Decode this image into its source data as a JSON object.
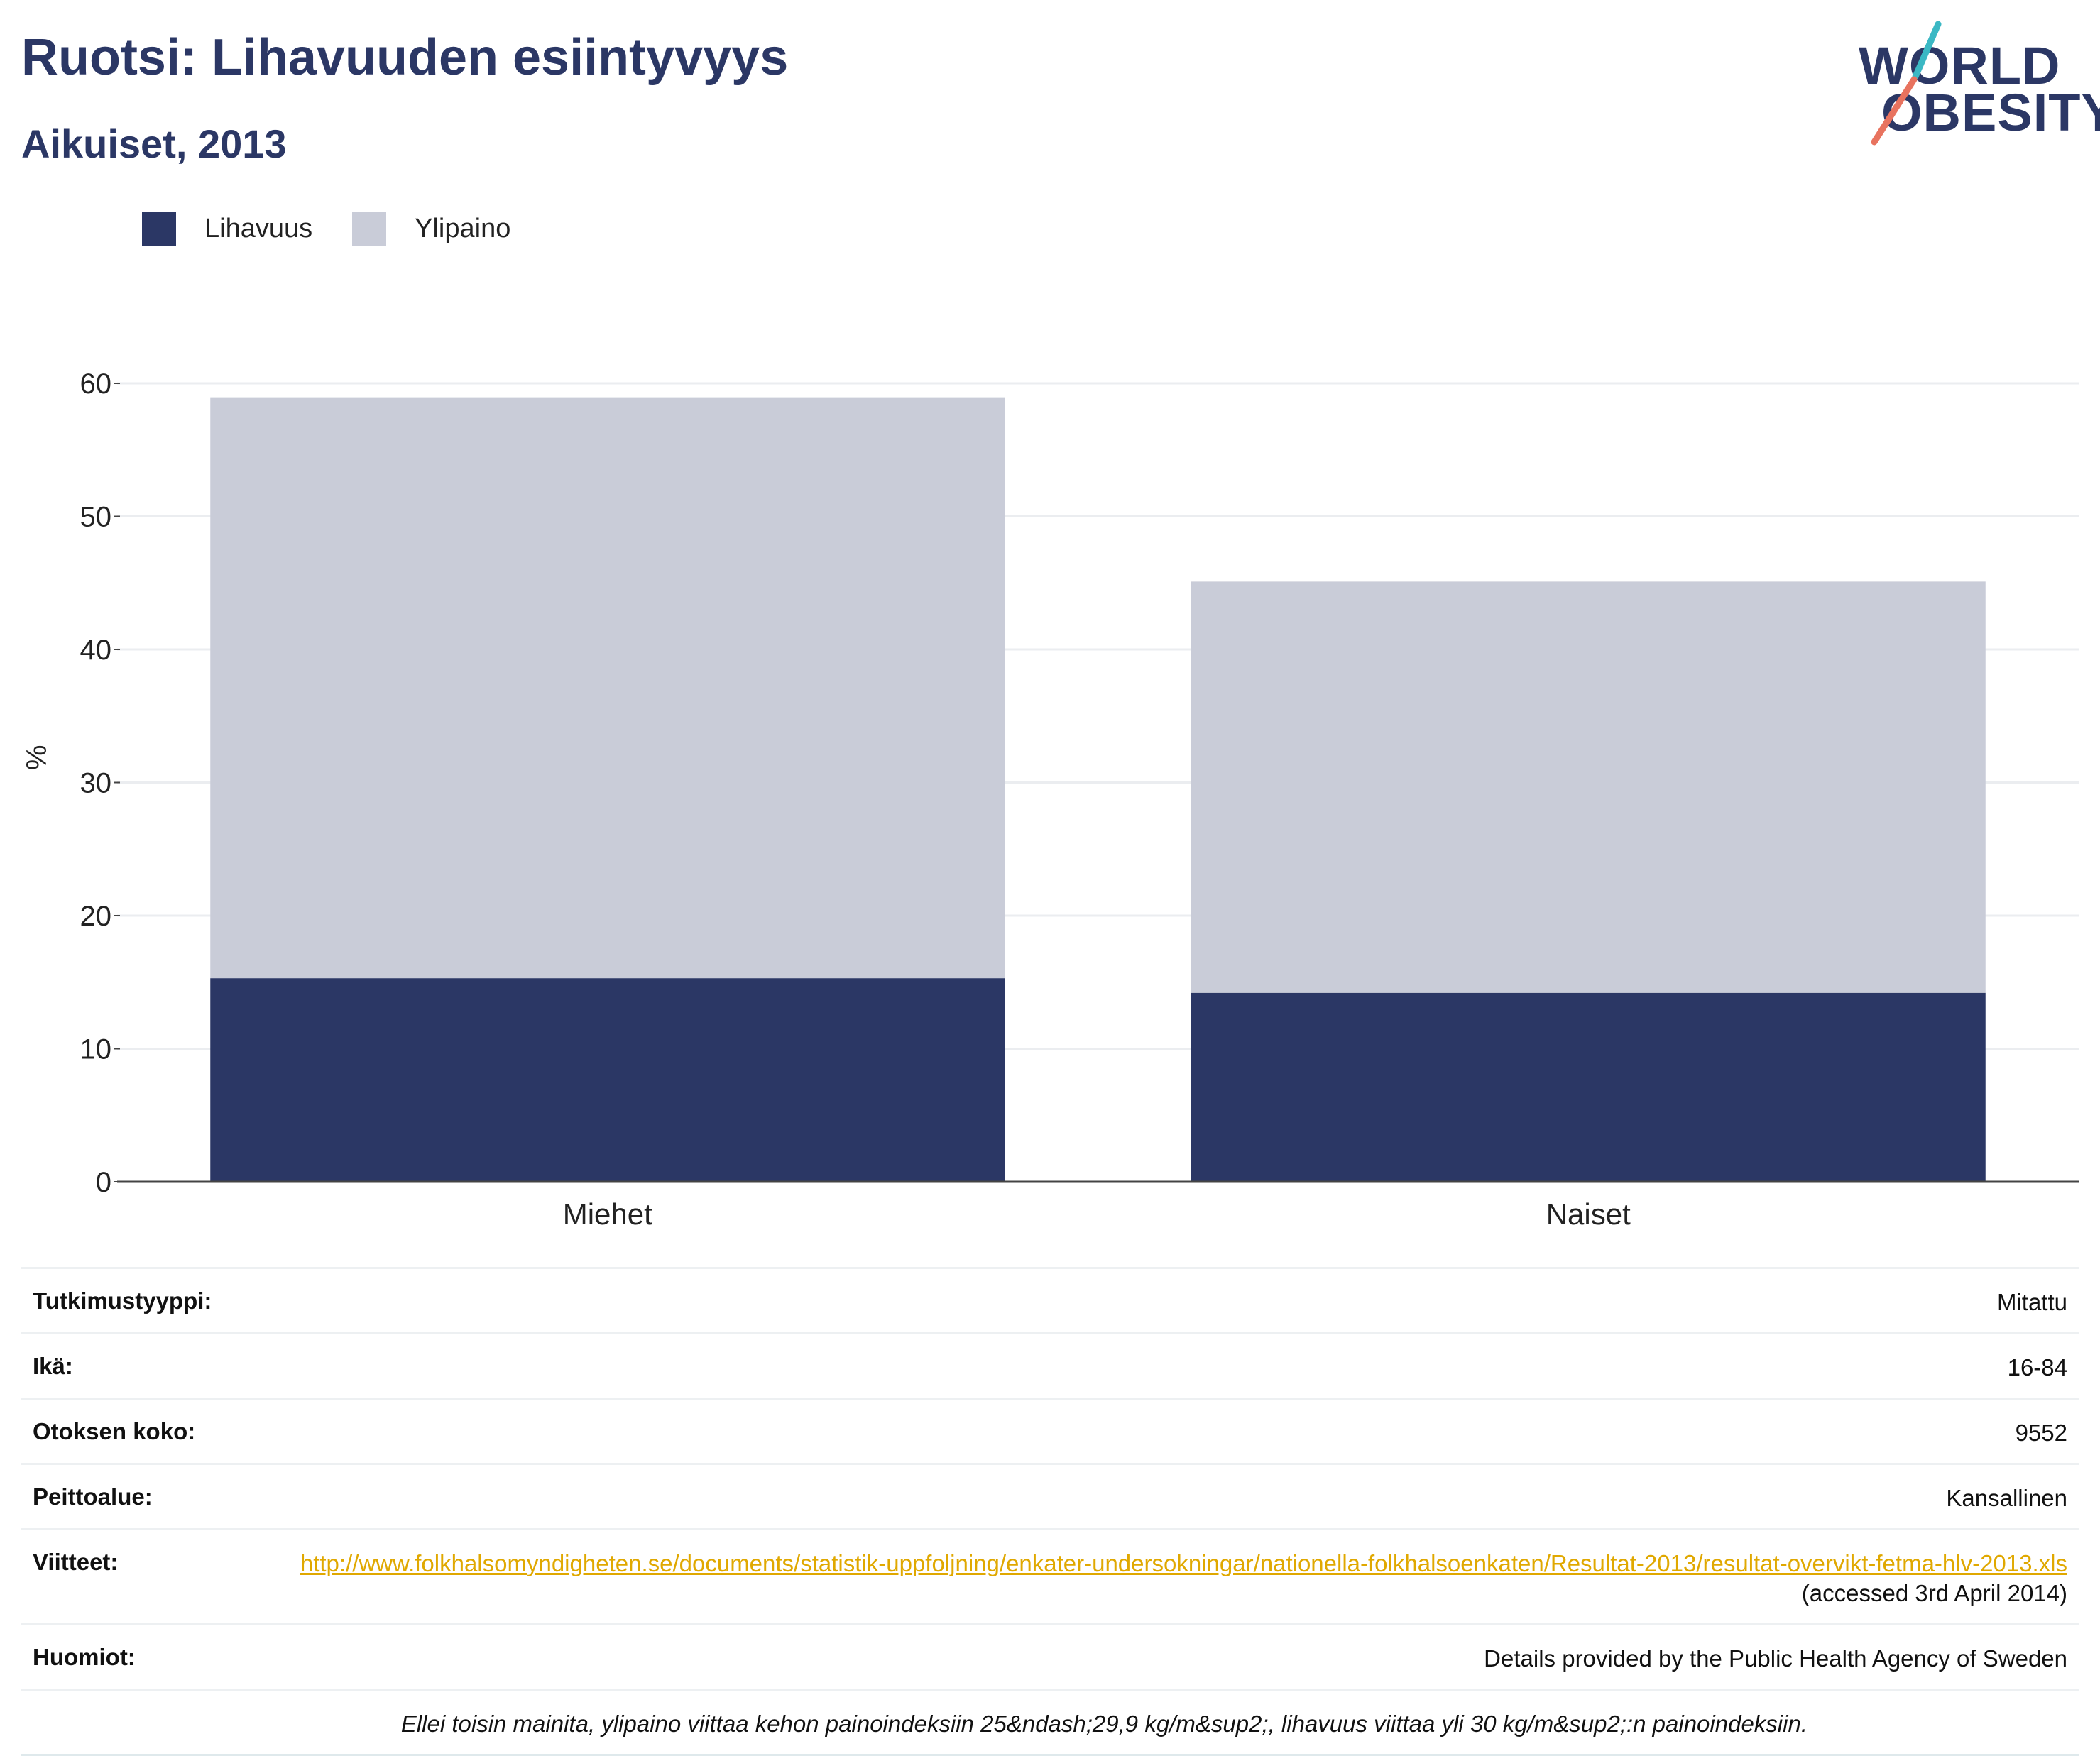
{
  "header": {
    "title": "Ruotsi: Lihavuuden esiintyvyys",
    "subtitle": "Aikuiset, 2013"
  },
  "logo": {
    "line1": "WORLD",
    "line2": "OBESITY",
    "accent_colors": [
      "#3bb8c4",
      "#e8735f"
    ]
  },
  "legend": [
    {
      "label": "Lihavuus",
      "color": "#2b3765"
    },
    {
      "label": "Ylipaino",
      "color": "#c9ccd8"
    }
  ],
  "chart_data": {
    "type": "bar",
    "stacked": true,
    "categories": [
      "Miehet",
      "Naiset"
    ],
    "series": [
      {
        "name": "Lihavuus",
        "values": [
          15.3,
          14.2
        ],
        "color": "#2b3765"
      },
      {
        "name": "Ylipaino",
        "values": [
          43.6,
          30.9
        ],
        "color": "#c9ccd8"
      }
    ],
    "ylabel": "%",
    "ylim": [
      0,
      60
    ],
    "yticks": [
      0,
      10,
      20,
      30,
      40,
      50,
      60
    ],
    "grid": true,
    "legend_position": "top-left"
  },
  "meta": {
    "study_type": {
      "label": "Tutkimustyyppi:",
      "value": "Mitattu"
    },
    "age": {
      "label": "Ikä:",
      "value": "16-84"
    },
    "sample": {
      "label": "Otoksen koko:",
      "value": "9552"
    },
    "coverage": {
      "label": "Peittoalue:",
      "value": "Kansallinen"
    },
    "refs": {
      "label": "Viitteet:",
      "url": "http://www.folkhalsomyndigheten.se/documents/statistik-uppfoljning/enkater-undersokningar/nationella-folkhalsoenkaten/Resultat-2013/resultat-overvikt-fetma-hlv-2013.xls",
      "accessed": " (accessed 3rd April 2014)"
    },
    "notes": {
      "label": "Huomiot:",
      "value": "Details provided by the Public Health Agency of Sweden"
    },
    "footnote": "Ellei toisin mainita, ylipaino viittaa kehon painoindeksiin 25&ndash;29,9 kg/m&sup2;, lihavuus viittaa yli 30 kg/m&sup2;:n painoindeksiin."
  }
}
